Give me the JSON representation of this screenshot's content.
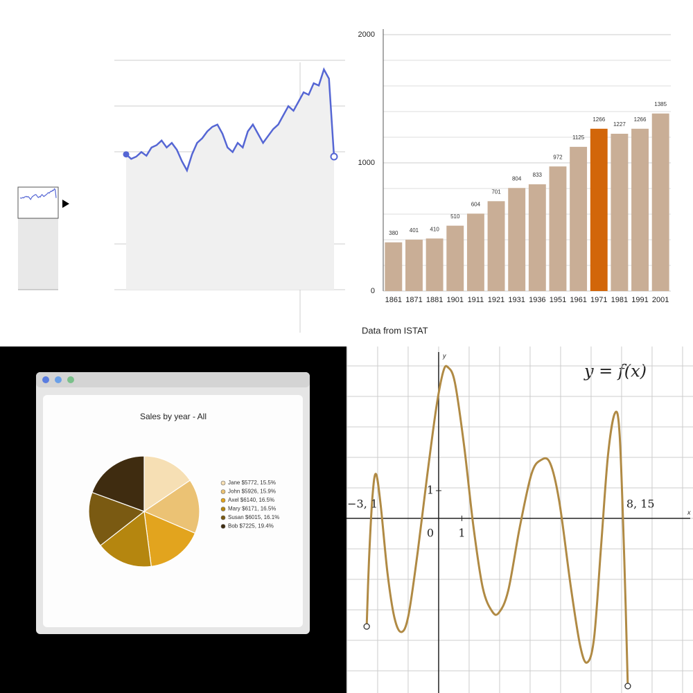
{
  "chart_data": [
    {
      "type": "area",
      "values": [
        2.95,
        2.85,
        2.9,
        3.0,
        2.92,
        3.1,
        3.15,
        3.25,
        3.1,
        3.2,
        3.05,
        2.8,
        2.6,
        2.95,
        3.2,
        3.3,
        3.45,
        3.55,
        3.6,
        3.4,
        3.1,
        3.0,
        3.2,
        3.1,
        3.45,
        3.6,
        3.4,
        3.2,
        3.35,
        3.5,
        3.6,
        3.8,
        4.0,
        3.9,
        4.1,
        4.3,
        4.25,
        4.5,
        4.45,
        4.8,
        4.6,
        2.9
      ],
      "color": "#5566d4",
      "ylim": [
        0,
        5
      ],
      "grid": true
    },
    {
      "type": "bar",
      "categories": [
        "1861",
        "1871",
        "1881",
        "1901",
        "1911",
        "1921",
        "1931",
        "1936",
        "1951",
        "1961",
        "1971",
        "1981",
        "1991",
        "2001"
      ],
      "values": [
        380,
        401,
        410,
        510,
        604,
        701,
        804,
        833,
        972,
        1125,
        1266,
        1227,
        1266,
        1385
      ],
      "colors": [
        "#c9ae96",
        "#c9ae96",
        "#c9ae96",
        "#c9ae96",
        "#c9ae96",
        "#c9ae96",
        "#c9ae96",
        "#c9ae96",
        "#c9ae96",
        "#c9ae96",
        "#d2660a",
        "#c9ae96",
        "#c9ae96",
        "#c9ae96"
      ],
      "ylim": [
        0,
        2000
      ],
      "yticks": [
        0,
        1000,
        2000
      ],
      "minor_yticks": [
        200,
        400,
        600,
        800,
        1200,
        1400,
        1600,
        1800
      ],
      "grid": true,
      "caption": "Data from ISTAT"
    },
    {
      "type": "pie",
      "title": "Sales by year - All",
      "categories": [
        "Jane $5772, 15.5%",
        "John $5926, 15.9%",
        "Axel $6140, 16.5%",
        "Mary $6171, 16.5%",
        "Susan $6015, 16.1%",
        "Bob $7225, 19.4%"
      ],
      "values": [
        15.5,
        15.9,
        16.5,
        16.5,
        16.1,
        19.4
      ],
      "colors": [
        "#f6dfb4",
        "#ebc274",
        "#e2a41e",
        "#b5860f",
        "#7a5a12",
        "#3f2c10"
      ]
    },
    {
      "type": "function",
      "title": "y = f(x)",
      "x": [
        -3.1,
        -3.0,
        -2.85,
        -2.7,
        -2.5,
        -2.2,
        -1.9,
        -1.6,
        -1.3,
        -0.9,
        -0.5,
        -0.1,
        0.2,
        0.4,
        0.7,
        1.1,
        1.5,
        1.9,
        2.3,
        2.6,
        3.0,
        3.5,
        4.0,
        4.4,
        4.8,
        5.2,
        5.7,
        6.1,
        6.4,
        6.7,
        7.0,
        7.3,
        7.6,
        7.8,
        8.0,
        8.15
      ],
      "values": [
        -3.9,
        -1.5,
        0.8,
        1.6,
        0.5,
        -2.0,
        -3.6,
        -4.1,
        -3.5,
        -1.2,
        1.5,
        4.0,
        5.3,
        5.45,
        4.9,
        2.6,
        -0.3,
        -2.5,
        -3.35,
        -3.4,
        -2.6,
        -0.3,
        1.6,
        2.1,
        2.0,
        0.6,
        -2.5,
        -4.6,
        -5.2,
        -4.3,
        -1.0,
        2.3,
        3.8,
        3.0,
        -1.5,
        -6.05
      ],
      "color": "#b08a44",
      "xlim": [
        -3.97,
        10.96
      ],
      "ylim": [
        -6.3,
        6.2
      ],
      "xticks": [
        0,
        1
      ],
      "yticks": [
        1
      ],
      "endpoint_labels": [
        "−3, 1",
        "8, 15"
      ],
      "xlabel": "x",
      "ylabel": "y",
      "grid": true
    }
  ]
}
